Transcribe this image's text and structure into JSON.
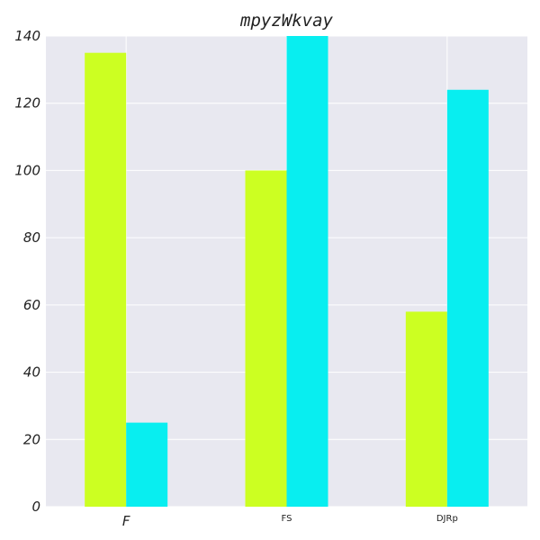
{
  "chart_data": {
    "type": "bar",
    "title": "mpyzWkvay",
    "xlabel": "",
    "ylabel": "",
    "categories": [
      "F",
      "FS",
      "DJRp"
    ],
    "series": [
      {
        "values": [
          135,
          100,
          58
        ],
        "color": "#ccff22"
      },
      {
        "values": [
          25,
          140,
          124
        ],
        "color": "#08eef0"
      }
    ],
    "ylim": [
      0,
      140
    ],
    "yticks": [
      0,
      20,
      40,
      60,
      80,
      100,
      120,
      140
    ],
    "grid": true,
    "legend": "none",
    "background_color": "#e8e8f0",
    "grid_color": "#ffffff"
  }
}
